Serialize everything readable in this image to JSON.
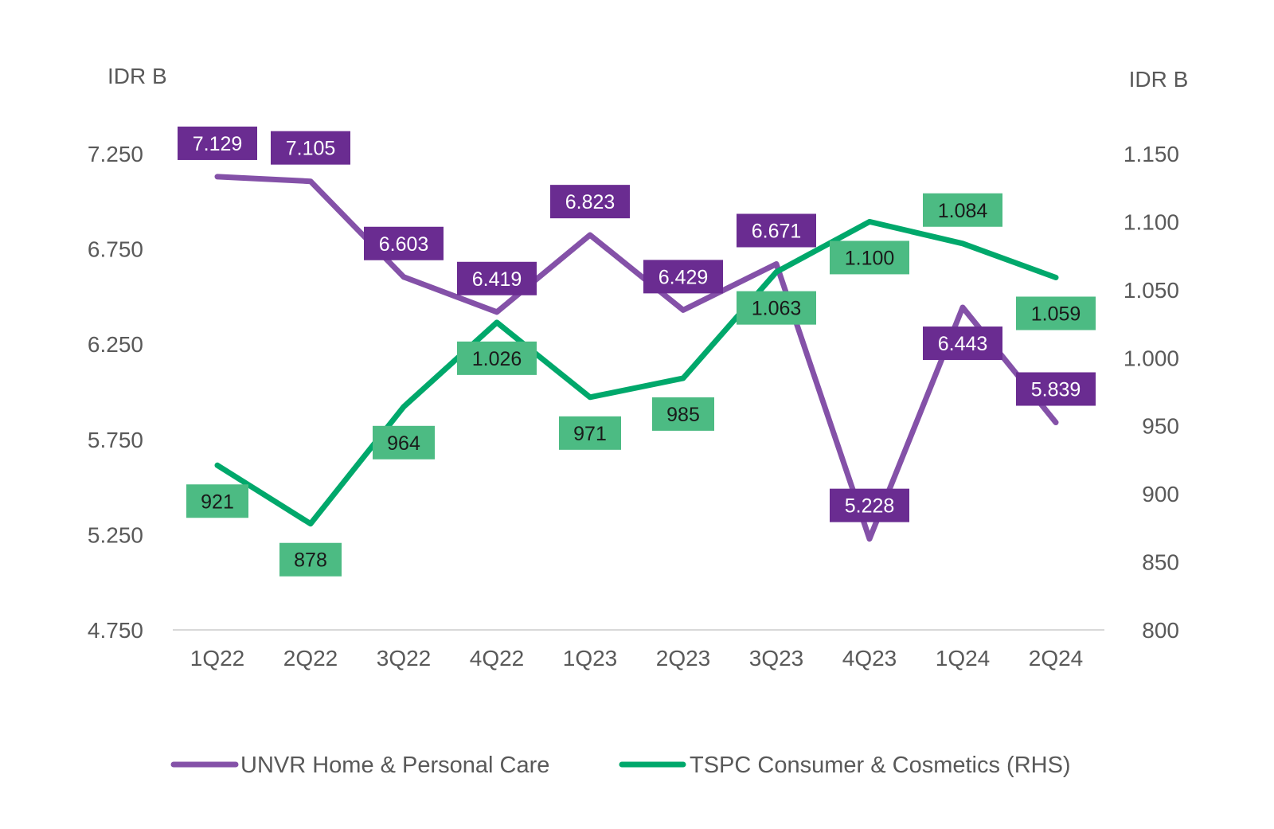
{
  "chart_data": {
    "type": "line",
    "categories": [
      "1Q22",
      "2Q22",
      "3Q22",
      "4Q22",
      "1Q23",
      "2Q23",
      "3Q23",
      "4Q23",
      "1Q24",
      "2Q24"
    ],
    "y_left": {
      "label": "IDR B",
      "ylim": [
        4750,
        7250
      ],
      "ticks": [
        4750,
        5250,
        5750,
        6250,
        6750,
        7250
      ],
      "tick_labels": [
        "4.750",
        "5.250",
        "5.750",
        "6.250",
        "6.750",
        "7.250"
      ]
    },
    "y_right": {
      "label": "IDR B",
      "ylim": [
        800,
        1150
      ],
      "ticks": [
        800,
        850,
        900,
        950,
        1000,
        1050,
        1100,
        1150
      ],
      "tick_labels": [
        "800",
        "850",
        "900",
        "950",
        "1.000",
        "1.050",
        "1.100",
        "1.150"
      ]
    },
    "series": [
      {
        "name": "UNVR Home & Personal Care",
        "axis": "left",
        "color": "#8451A8",
        "label_color": "#6A2C91",
        "values": [
          7129,
          7105,
          6603,
          6419,
          6823,
          6429,
          6671,
          5228,
          6443,
          5839
        ],
        "labels": [
          "7.129",
          "7.105",
          "6.603",
          "6.419",
          "6.823",
          "6.429",
          "6.671",
          "5.228",
          "6.443",
          "5.839"
        ],
        "label_side": [
          "above",
          "above",
          "above",
          "above",
          "above",
          "above",
          "above",
          "above",
          "below",
          "above"
        ]
      },
      {
        "name": "TSPC Consumer & Cosmetics (RHS)",
        "axis": "right",
        "color": "#00A86B",
        "label_color": "#4CBB83",
        "values": [
          921,
          878,
          964,
          1026,
          971,
          985,
          1063,
          1100,
          1084,
          1059
        ],
        "labels": [
          "921",
          "878",
          "964",
          "1.026",
          "971",
          "985",
          "1.063",
          "1.100",
          "1.084",
          "1.059"
        ],
        "label_side": [
          "below",
          "below",
          "below",
          "below",
          "below",
          "below",
          "below",
          "below",
          "above",
          "below"
        ]
      }
    ],
    "grid": false,
    "legend_position": "bottom"
  }
}
